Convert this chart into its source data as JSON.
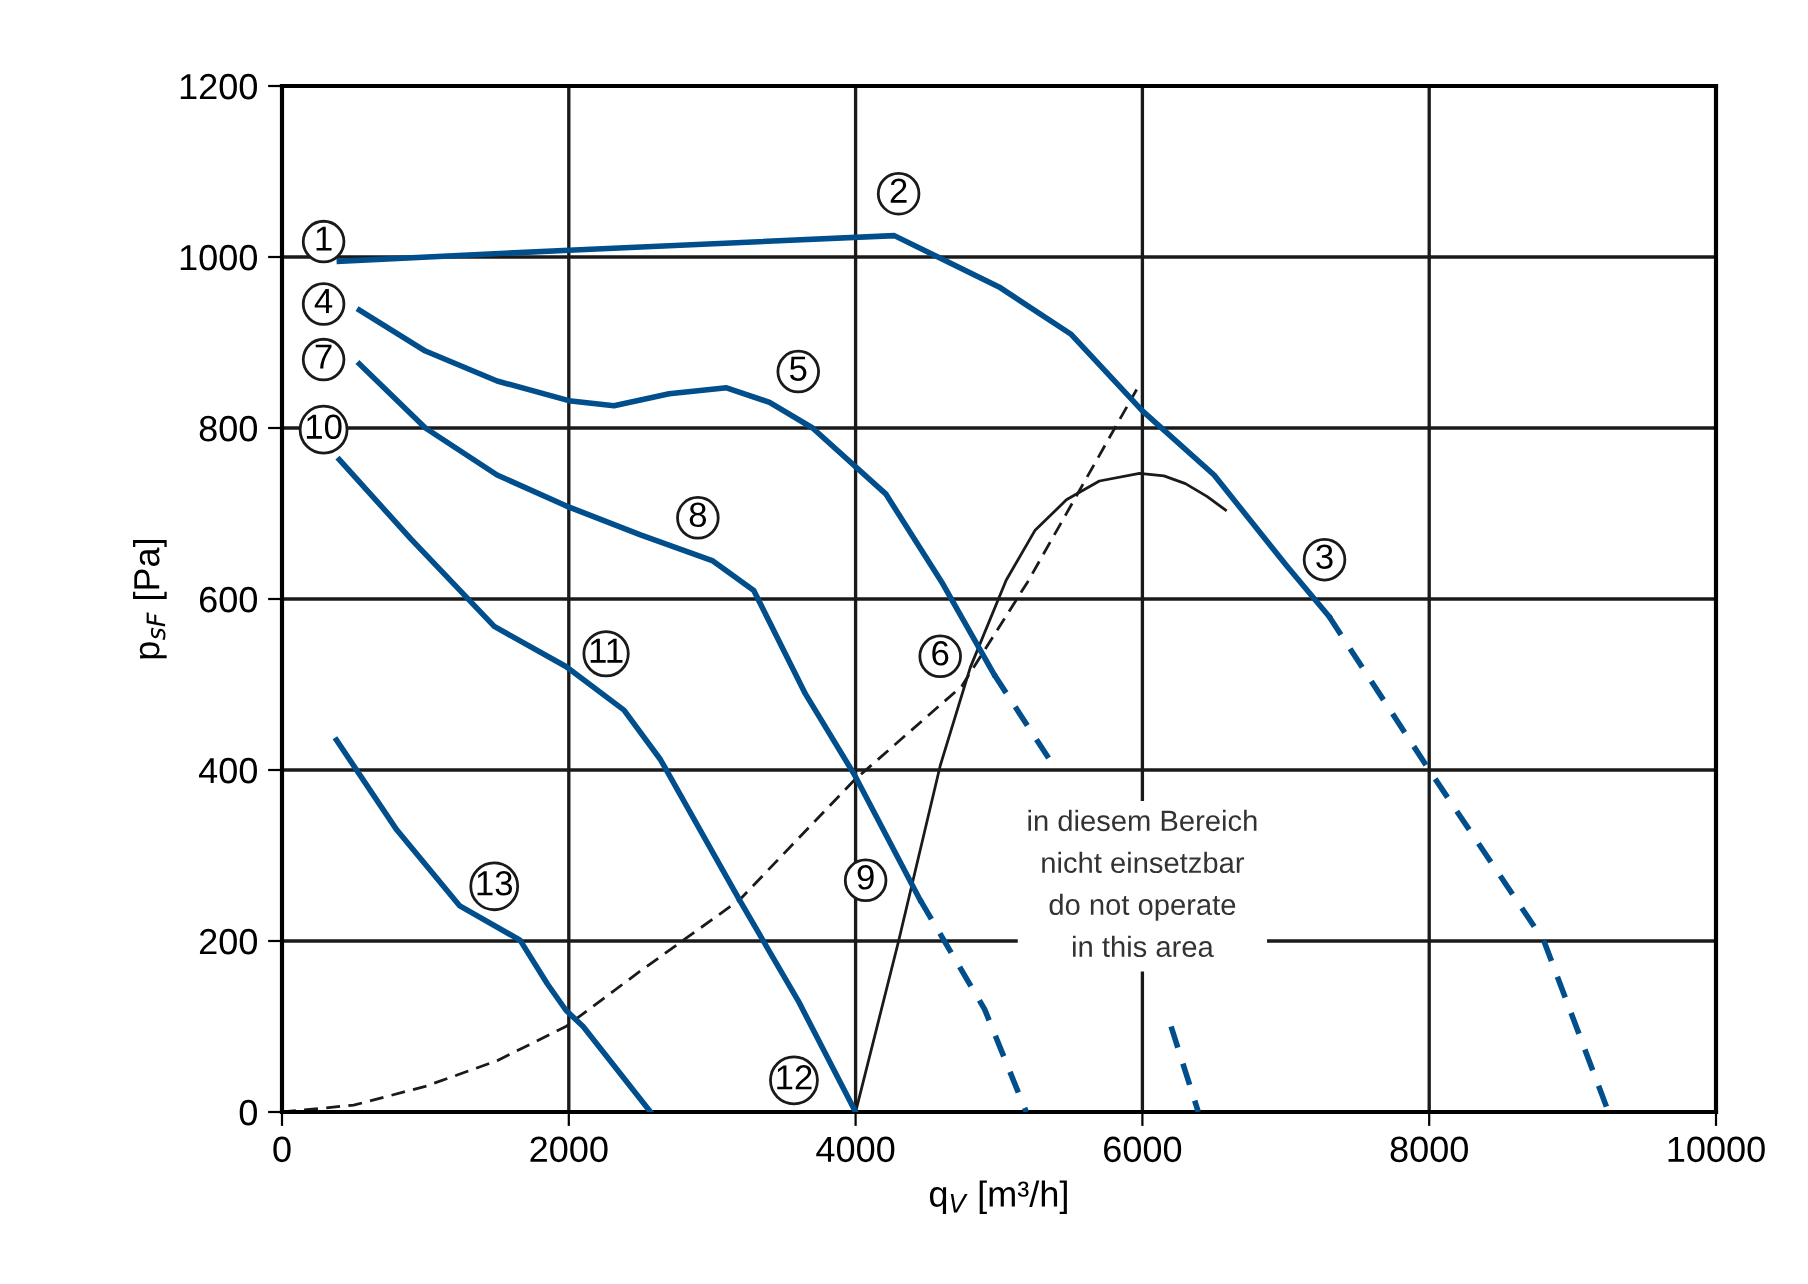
{
  "chart_data": {
    "type": "line",
    "xlabel": "q$_{V}$ [m³/h]",
    "ylabel": "p$_{sF}$ [Pa]",
    "xlim": [
      0,
      10000
    ],
    "ylim": [
      0,
      1200
    ],
    "xticks": [
      0,
      2000,
      4000,
      6000,
      8000,
      10000
    ],
    "yticks": [
      0,
      200,
      400,
      600,
      800,
      1000,
      1200
    ],
    "grid": true,
    "legend": false,
    "marker": "none",
    "series": [
      {
        "color": "#004f8c",
        "line_style": "solid",
        "x": [
          400,
          2000,
          4270,
          5000,
          5500,
          6000,
          6500,
          7000,
          7300
        ],
        "values": [
          995,
          1008,
          1025,
          965,
          910,
          820,
          745,
          640,
          580
        ]
      },
      {
        "color": "#004f8c",
        "line_style": "dashed",
        "x": [
          7300,
          8000,
          8800,
          9250
        ],
        "values": [
          580,
          400,
          200,
          0
        ]
      },
      {
        "color": "#004f8c",
        "line_style": "solid",
        "x": [
          540,
          1000,
          1500,
          2000,
          2315,
          2700,
          3100,
          3400,
          3700,
          4210,
          4600,
          4965
        ],
        "values": [
          938,
          890,
          855,
          832,
          826,
          840,
          847,
          830,
          800,
          723,
          620,
          512
        ]
      },
      {
        "color": "#004f8c",
        "line_style": "dashed",
        "x": [
          4965,
          5400,
          5800,
          6200,
          6390
        ],
        "values": [
          512,
          400,
          null,
          100,
          0
        ]
      },
      {
        "color": "#004f8c",
        "line_style": "solid",
        "x": [
          540,
          1000,
          1500,
          1980,
          2500,
          3000,
          3290,
          3650,
          3990,
          4450
        ],
        "values": [
          875,
          800,
          745,
          709,
          675,
          645,
          610,
          489,
          395,
          248
        ]
      },
      {
        "color": "#004f8c",
        "line_style": "dashed",
        "x": [
          4450,
          4900,
          5190
        ],
        "values": [
          248,
          120,
          0
        ]
      },
      {
        "color": "#004f8c",
        "line_style": "solid",
        "x": [
          400,
          900,
          1480,
          1980,
          2385,
          2640,
          3190,
          3600,
          4000
        ],
        "values": [
          763,
          670,
          568,
          521,
          470,
          412,
          248,
          130,
          0
        ]
      },
      {
        "color": "#004f8c",
        "line_style": "solid",
        "x": [
          380,
          800,
          1240,
          1660,
          1850,
          1980,
          2100,
          2570
        ],
        "values": [
          435,
          330,
          241,
          201,
          150,
          119,
          100,
          0
        ]
      },
      {
        "color": "#1a1a1a",
        "line_style": "dashed",
        "x": [
          0,
          500,
          1000,
          1500,
          1980,
          2500,
          3190,
          3990,
          4740,
          5200,
          5960
        ],
        "values": [
          0,
          8,
          30,
          60,
          100,
          165,
          248,
          388,
          498,
          620,
          845
        ]
      },
      {
        "color": "#1a1a1a",
        "line_style": "solid",
        "x": [
          4000,
          4300,
          4590,
          4800,
          5050,
          5250,
          5470,
          5700,
          5980,
          6150,
          6300,
          6450,
          6580
        ],
        "values": [
          0,
          200,
          405,
          520,
          622,
          680,
          716,
          738,
          747,
          744,
          735,
          720,
          704
        ]
      }
    ],
    "annotations": [
      {
        "text": "1",
        "x": 290,
        "y": 1018
      },
      {
        "text": "2",
        "x": 4300,
        "y": 1074
      },
      {
        "text": "3",
        "x": 7270,
        "y": 646
      },
      {
        "text": "4",
        "x": 290,
        "y": 945
      },
      {
        "text": "5",
        "x": 3600,
        "y": 866
      },
      {
        "text": "6",
        "x": 4590,
        "y": 533
      },
      {
        "text": "7",
        "x": 290,
        "y": 880
      },
      {
        "text": "8",
        "x": 2900,
        "y": 695
      },
      {
        "text": "9",
        "x": 4070,
        "y": 271
      },
      {
        "text": "10",
        "x": 290,
        "y": 798
      },
      {
        "text": "11",
        "x": 2260,
        "y": 536
      },
      {
        "text": "12",
        "x": 3570,
        "y": 37
      },
      {
        "text": "13",
        "x": 1480,
        "y": 264
      },
      "in diesem Bereich\nnicht einsetzbar\ndo not operate\nin this area"
    ]
  }
}
